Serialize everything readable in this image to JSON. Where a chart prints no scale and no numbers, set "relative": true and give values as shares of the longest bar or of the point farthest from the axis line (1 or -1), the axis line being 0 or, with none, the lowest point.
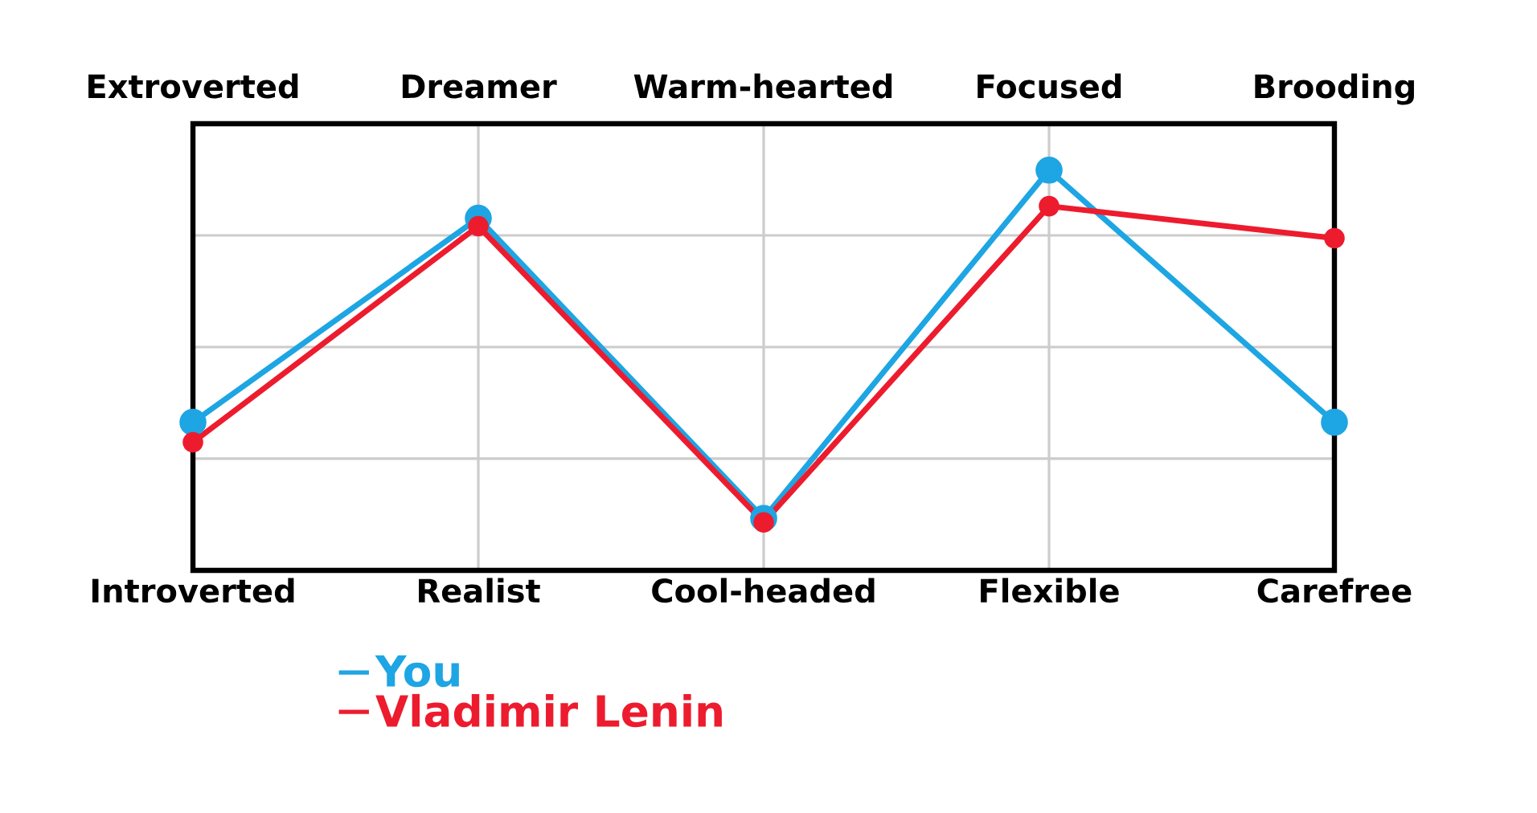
{
  "chart_data": {
    "type": "line",
    "relative": true,
    "categories": [
      "Introverted",
      "Realist",
      "Cool-headed",
      "Flexible",
      "Carefree"
    ],
    "annotations": [
      "Extroverted",
      "Dreamer",
      "Warm-hearted",
      "Focused",
      "Brooding"
    ],
    "series": [
      {
        "name": "You",
        "color": "#1ea5e3",
        "values": [
          0.37,
          0.88,
          0.13,
          1,
          0.37
        ]
      },
      {
        "name": "Vladimir Lenin",
        "color": "#ec1c2e",
        "values": [
          0.32,
          0.86,
          0.12,
          0.91,
          0.83
        ]
      }
    ],
    "grid": true,
    "legend": "bottom left",
    "marker": "circle",
    "line_style": "solid"
  }
}
